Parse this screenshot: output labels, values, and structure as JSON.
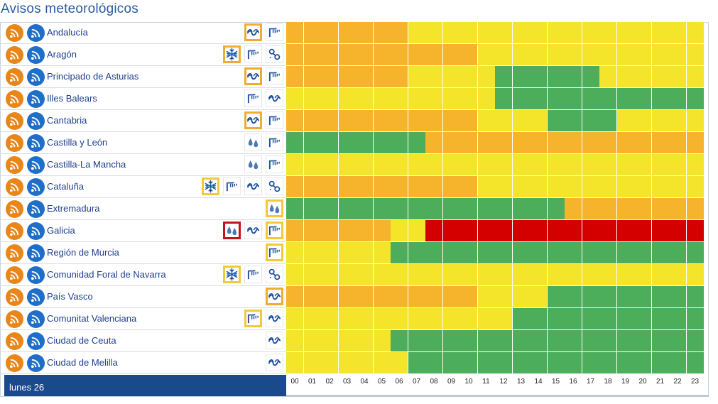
{
  "page": {
    "title": "Avisos meteorológicos"
  },
  "day_label": "lunes 26",
  "hours": [
    "00",
    "01",
    "02",
    "03",
    "04",
    "05",
    "06",
    "07",
    "08",
    "09",
    "10",
    "11",
    "12",
    "13",
    "14",
    "15",
    "16",
    "17",
    "18",
    "19",
    "20",
    "21",
    "22",
    "23"
  ],
  "level_colors": {
    "y": "#f4e42a",
    "o": "#f6b42c",
    "r": "#d40000",
    "g": "#4cad5b"
  },
  "regions": [
    {
      "name": "Andalucía",
      "icons": [
        {
          "type": "coastal",
          "level": "o"
        },
        {
          "type": "wind",
          "level": "n"
        }
      ],
      "levels": "oooooooyyyyyyyyyyyyyyyyy"
    },
    {
      "name": "Aragón",
      "icons": [
        {
          "type": "snow",
          "level": "o"
        },
        {
          "type": "wind",
          "level": "n"
        },
        {
          "type": "storm",
          "level": "n"
        }
      ],
      "levels": "oooooooooooyyyyyyyyyyyyy"
    },
    {
      "name": "Principado de Asturias",
      "icons": [
        {
          "type": "coastal",
          "level": "o"
        },
        {
          "type": "wind",
          "level": "n"
        }
      ],
      "levels": "oooooooyyyyyggggggyyyyyy"
    },
    {
      "name": "Illes Balears",
      "icons": [
        {
          "type": "wind",
          "level": "n"
        },
        {
          "type": "coastal",
          "level": "n"
        }
      ],
      "levels": "yyyyyyyyyyyygggggggggggg"
    },
    {
      "name": "Cantabria",
      "icons": [
        {
          "type": "coastal",
          "level": "o"
        },
        {
          "type": "wind",
          "level": "n"
        }
      ],
      "levels": "oooooooooooyyyyggggyyyyy"
    },
    {
      "name": "Castilla y León",
      "icons": [
        {
          "type": "rain",
          "level": "n"
        },
        {
          "type": "wind",
          "level": "n"
        }
      ],
      "levels": "ggggggggoooooooooooooooo"
    },
    {
      "name": "Castilla-La Mancha",
      "icons": [
        {
          "type": "rain",
          "level": "n"
        },
        {
          "type": "wind",
          "level": "n"
        }
      ],
      "levels": "yyyyyyyyyyyyyyyyyyyyyyyy"
    },
    {
      "name": "Cataluña",
      "icons": [
        {
          "type": "snow",
          "level": "y"
        },
        {
          "type": "wind",
          "level": "n"
        },
        {
          "type": "coastal",
          "level": "n"
        },
        {
          "type": "storm",
          "level": "n"
        }
      ],
      "levels": "oooooooooooyyyyyyyyyyyyy"
    },
    {
      "name": "Extremadura",
      "icons": [
        {
          "type": "rain",
          "level": "y"
        }
      ],
      "levels": "ggggggggggggggggoooooooo"
    },
    {
      "name": "Galicia",
      "icons": [
        {
          "type": "rain",
          "level": "r"
        },
        {
          "type": "coastal",
          "level": "n"
        },
        {
          "type": "wind",
          "level": "y"
        }
      ],
      "levels": "ooooooyyrrrrrrrrrrrrrrrr"
    },
    {
      "name": "Región de Murcia",
      "icons": [
        {
          "type": "wind",
          "level": "y"
        }
      ],
      "levels": "yyyyyygggggggggggggggggg"
    },
    {
      "name": "Comunidad Foral de Navarra",
      "icons": [
        {
          "type": "snow",
          "level": "y"
        },
        {
          "type": "wind",
          "level": "n"
        },
        {
          "type": "storm",
          "level": "n"
        }
      ],
      "levels": "yyyyyyyyyyyyyyyyyyyyyyyy"
    },
    {
      "name": "País Vasco",
      "icons": [
        {
          "type": "coastal",
          "level": "o"
        }
      ],
      "levels": "oooooooooooyyyyggggggggg"
    },
    {
      "name": "Comunitat Valenciana",
      "icons": [
        {
          "type": "wind",
          "level": "y"
        },
        {
          "type": "coastal",
          "level": "n"
        }
      ],
      "levels": "yyyyyyyyyyyyyggggggggggg"
    },
    {
      "name": "Ciudad de Ceuta",
      "icons": [
        {
          "type": "coastal",
          "level": "n"
        }
      ],
      "levels": "yyyyyygggggggggggggggggg"
    },
    {
      "name": "Ciudad de Melilla",
      "icons": [
        {
          "type": "coastal",
          "level": "n"
        }
      ],
      "levels": "yyyyyyyggggggggggggggggg"
    }
  ]
}
